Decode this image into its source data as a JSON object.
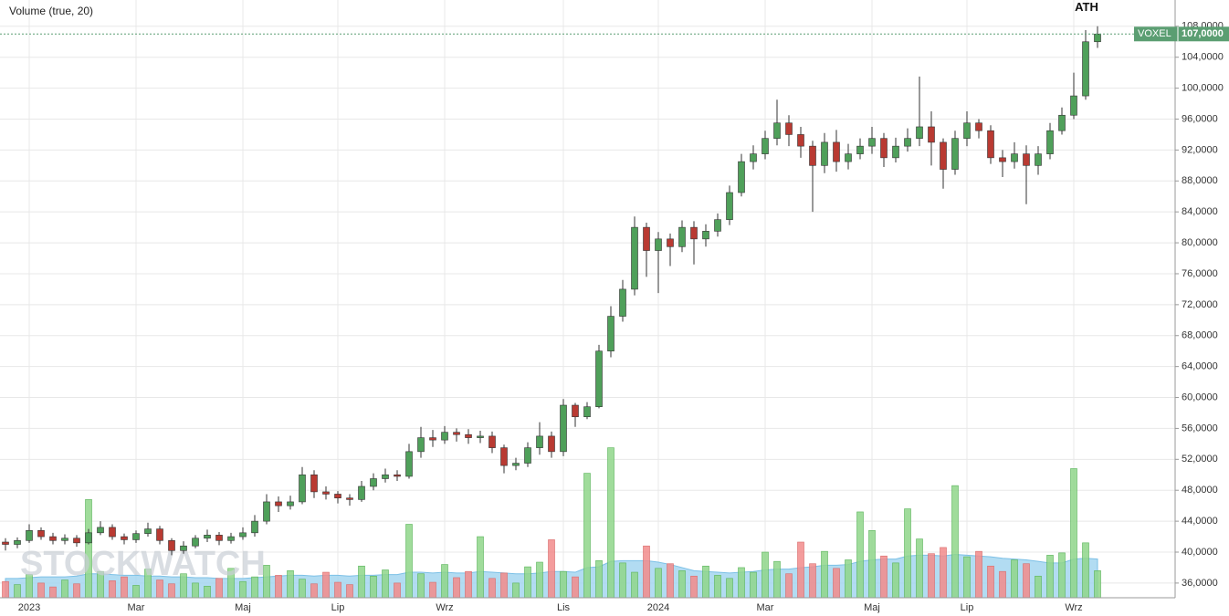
{
  "chart_data": {
    "type": "candlestick",
    "title": "Volume (true, 20)",
    "annotation": "ATH",
    "watermark": "STOCKWATCH",
    "grid": true,
    "categories": [
      null,
      null,
      "2023",
      null,
      null,
      null,
      null,
      null,
      null,
      null,
      null,
      "Mar",
      null,
      null,
      null,
      null,
      null,
      null,
      null,
      null,
      "Maj",
      null,
      null,
      null,
      null,
      null,
      null,
      null,
      "Lip",
      null,
      null,
      null,
      null,
      null,
      null,
      null,
      null,
      "Wrz",
      null,
      null,
      null,
      null,
      null,
      null,
      null,
      null,
      null,
      "Lis",
      null,
      null,
      null,
      null,
      null,
      null,
      null,
      "2024",
      null,
      null,
      null,
      null,
      null,
      null,
      null,
      null,
      "Mar",
      null,
      null,
      null,
      null,
      null,
      null,
      null,
      null,
      "Maj",
      null,
      null,
      null,
      null,
      null,
      null,
      null,
      "Lip",
      null,
      null,
      null,
      null,
      null,
      null,
      null,
      null,
      "Wrz",
      null,
      null
    ],
    "open": [
      41.3,
      41.0,
      41.5,
      42.8,
      42.0,
      41.5,
      41.8,
      41.2,
      42.5,
      43.2,
      42.0,
      41.6,
      42.4,
      43.0,
      41.5,
      40.2,
      40.8,
      41.8,
      42.2,
      41.5,
      42.0,
      42.5,
      44.0,
      46.5,
      46.0,
      46.5,
      50.0,
      47.8,
      47.5,
      47.0,
      46.8,
      48.5,
      49.5,
      50.0,
      49.8,
      53.0,
      54.8,
      54.5,
      55.5,
      55.2,
      54.8,
      55.0,
      53.5,
      51.2,
      51.5,
      53.5,
      55.0,
      53.0,
      59.0,
      57.5,
      58.8,
      66.0,
      70.5,
      74.0,
      82.0,
      79.0,
      80.5,
      79.5,
      82.0,
      80.5,
      81.5,
      83.0,
      86.5,
      90.5,
      91.5,
      93.5,
      95.5,
      94.0,
      92.5,
      90.0,
      93.0,
      90.5,
      91.5,
      92.5,
      93.5,
      91.0,
      92.5,
      93.5,
      95.0,
      93.0,
      89.5,
      93.5,
      95.5,
      94.5,
      91.0,
      90.5,
      91.5,
      90.0,
      91.5,
      94.5,
      96.5,
      99.0,
      106.0
    ],
    "high": [
      41.8,
      41.9,
      43.6,
      43.2,
      42.5,
      42.3,
      42.2,
      43.0,
      44.0,
      43.6,
      42.4,
      42.8,
      43.8,
      43.4,
      41.8,
      41.4,
      42.2,
      42.9,
      42.6,
      42.5,
      43.2,
      44.8,
      47.5,
      47.2,
      47.3,
      51.0,
      50.6,
      48.5,
      47.9,
      47.5,
      49.2,
      50.2,
      50.8,
      50.6,
      54.0,
      56.2,
      55.8,
      56.3,
      56.0,
      55.9,
      55.7,
      55.6,
      53.9,
      52.2,
      54.2,
      56.8,
      55.6,
      59.8,
      59.3,
      59.4,
      66.8,
      71.8,
      75.2,
      83.4,
      82.6,
      81.4,
      81.2,
      82.9,
      82.8,
      82.4,
      83.8,
      87.4,
      91.5,
      92.6,
      94.5,
      98.5,
      96.5,
      95.0,
      93.2,
      94.2,
      94.6,
      92.8,
      93.5,
      95.0,
      94.2,
      93.6,
      94.8,
      101.5,
      97.0,
      93.5,
      94.5,
      97.0,
      96.0,
      95.2,
      92.0,
      93.0,
      92.6,
      92.5,
      95.5,
      97.5,
      102.0,
      107.5,
      108.0
    ],
    "low": [
      40.2,
      40.5,
      41.2,
      41.6,
      41.0,
      41.0,
      40.7,
      41.0,
      42.2,
      41.6,
      41.0,
      41.2,
      42.0,
      41.0,
      39.6,
      39.8,
      40.5,
      41.3,
      40.9,
      41.1,
      41.6,
      42.0,
      43.6,
      45.2,
      45.5,
      46.2,
      47.0,
      46.8,
      46.3,
      46.0,
      46.5,
      48.0,
      49.0,
      49.2,
      49.5,
      52.2,
      53.6,
      54.0,
      54.3,
      54.0,
      54.1,
      52.8,
      50.2,
      50.6,
      51.0,
      52.6,
      52.2,
      52.4,
      56.2,
      57.2,
      58.6,
      65.2,
      69.8,
      73.2,
      75.6,
      73.5,
      77.0,
      78.8,
      77.2,
      79.5,
      80.8,
      82.3,
      86.0,
      89.5,
      90.8,
      92.6,
      92.5,
      91.0,
      84.0,
      89.0,
      89.2,
      89.5,
      90.8,
      91.5,
      89.8,
      90.4,
      91.8,
      92.5,
      90.0,
      87.0,
      88.8,
      92.5,
      93.5,
      90.2,
      88.5,
      89.6,
      85.0,
      88.8,
      90.8,
      94.0,
      96.0,
      98.5,
      105.2
    ],
    "close": [
      41.0,
      41.5,
      42.8,
      42.0,
      41.5,
      41.8,
      41.2,
      42.5,
      43.2,
      42.0,
      41.6,
      42.4,
      43.0,
      41.5,
      40.2,
      40.8,
      41.8,
      42.2,
      41.5,
      42.0,
      42.5,
      44.0,
      46.5,
      46.0,
      46.5,
      50.0,
      47.8,
      47.5,
      47.0,
      46.8,
      48.5,
      49.5,
      50.0,
      49.8,
      53.0,
      54.8,
      54.5,
      55.5,
      55.2,
      54.8,
      55.0,
      53.5,
      51.2,
      51.5,
      53.5,
      55.0,
      53.0,
      59.0,
      57.5,
      58.8,
      66.0,
      70.5,
      74.0,
      82.0,
      79.0,
      80.5,
      79.5,
      82.0,
      80.5,
      81.5,
      83.0,
      86.5,
      90.5,
      91.5,
      93.5,
      95.5,
      94.0,
      92.5,
      90.0,
      93.0,
      90.5,
      91.5,
      92.5,
      93.5,
      91.0,
      92.5,
      93.5,
      95.0,
      93.0,
      89.5,
      93.5,
      95.5,
      94.5,
      91.0,
      90.5,
      91.5,
      90.0,
      91.5,
      94.5,
      96.5,
      99.0,
      106.0,
      107.0
    ],
    "volume": [
      36.2,
      35.8,
      37.1,
      36.0,
      35.5,
      36.4,
      35.9,
      46.8,
      37.5,
      36.3,
      36.8,
      35.7,
      37.8,
      36.4,
      35.9,
      37.2,
      36.0,
      35.6,
      36.6,
      37.9,
      36.2,
      36.8,
      38.3,
      37.0,
      37.6,
      36.5,
      35.9,
      37.4,
      36.1,
      35.8,
      38.2,
      36.9,
      37.7,
      36.0,
      43.6,
      37.2,
      36.1,
      38.4,
      36.7,
      37.5,
      42.0,
      36.6,
      37.3,
      36.0,
      38.1,
      38.7,
      41.6,
      37.5,
      36.8,
      50.2,
      38.9,
      53.5,
      38.6,
      37.4,
      40.8,
      37.9,
      38.5,
      37.6,
      36.9,
      38.2,
      37.0,
      36.6,
      38.0,
      37.4,
      40.0,
      38.8,
      37.2,
      41.3,
      38.5,
      40.1,
      37.9,
      39.0,
      45.2,
      42.8,
      39.5,
      38.6,
      45.6,
      41.7,
      39.8,
      40.6,
      48.6,
      39.4,
      40.1,
      38.2,
      37.5,
      39.0,
      38.5,
      36.9,
      39.6,
      39.9,
      50.8,
      41.2,
      37.6
    ],
    "volume_ma": [
      36.6,
      36.6,
      36.7,
      36.8,
      36.8,
      36.8,
      36.9,
      37.2,
      37.2,
      37.1,
      37.0,
      37.0,
      36.9,
      36.9,
      36.8,
      36.8,
      36.7,
      36.7,
      36.6,
      36.6,
      36.6,
      36.7,
      36.8,
      36.9,
      37.0,
      37.0,
      36.9,
      37.0,
      37.0,
      36.9,
      37.0,
      37.0,
      37.1,
      37.1,
      37.4,
      37.4,
      37.3,
      37.4,
      37.3,
      37.3,
      37.5,
      37.4,
      37.3,
      37.2,
      37.2,
      37.3,
      37.5,
      37.5,
      37.4,
      38.0,
      38.1,
      38.8,
      38.9,
      38.9,
      38.9,
      38.7,
      38.4,
      38.0,
      37.6,
      37.5,
      37.4,
      37.3,
      37.4,
      37.5,
      37.7,
      37.8,
      37.8,
      38.0,
      38.1,
      38.3,
      38.3,
      38.4,
      38.8,
      39.0,
      39.1,
      39.1,
      39.5,
      39.6,
      39.6,
      39.5,
      39.7,
      39.6,
      39.5,
      39.4,
      39.2,
      39.1,
      39.0,
      38.8,
      38.6,
      38.6,
      39.1,
      39.2,
      39.1
    ],
    "colors": {
      "up": "#4fa05a",
      "down": "#b93a32",
      "volume_up": "#8fd68a",
      "volume_down": "#f28b8b",
      "volume_ma": "#9fd3ef",
      "last": "#5b9e72"
    },
    "last_price": {
      "name": "VOXEL",
      "value": 107,
      "label": "107,0000"
    },
    "ylim": [
      34.1,
      111.4
    ],
    "yticks": [
      {
        "value": 36,
        "label": "36,0000"
      },
      {
        "value": 40,
        "label": "40,0000"
      },
      {
        "value": 44,
        "label": "44,0000"
      },
      {
        "value": 48,
        "label": "48,0000"
      },
      {
        "value": 52,
        "label": "52,0000"
      },
      {
        "value": 56,
        "label": "56,0000"
      },
      {
        "value": 60,
        "label": "60,0000"
      },
      {
        "value": 64,
        "label": "64,0000"
      },
      {
        "value": 68,
        "label": "68,0000"
      },
      {
        "value": 72,
        "label": "72,0000"
      },
      {
        "value": 76,
        "label": "76,0000"
      },
      {
        "value": 80,
        "label": "80,0000"
      },
      {
        "value": 84,
        "label": "84,0000"
      },
      {
        "value": 88,
        "label": "88,0000"
      },
      {
        "value": 92,
        "label": "92,0000"
      },
      {
        "value": 96,
        "label": "96,0000"
      },
      {
        "value": 100,
        "label": "100,0000"
      },
      {
        "value": 104,
        "label": "104,0000"
      },
      {
        "value": 108,
        "label": "108,0000"
      }
    ]
  }
}
